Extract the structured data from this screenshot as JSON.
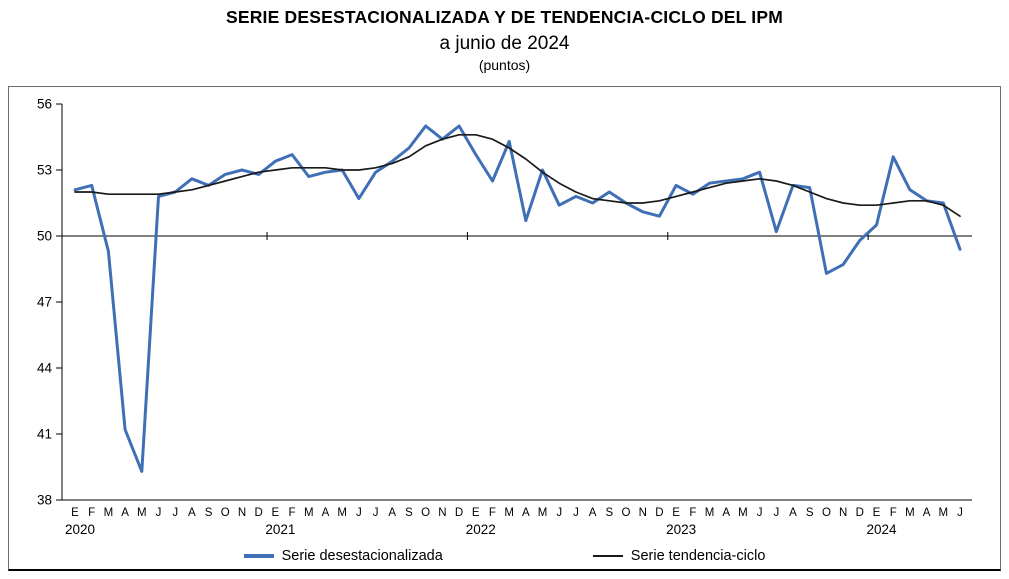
{
  "header": {
    "title": "SERIE DESESTACIONALIZADA Y DE TENDENCIA-CICLO DEL IPM",
    "subtitle": "a junio de 2024",
    "units": "(puntos)"
  },
  "legend": {
    "series1": "Serie desestacionalizada",
    "series2": "Serie tendencia-ciclo"
  },
  "chart_data": {
    "type": "line",
    "title": "SERIE DESESTACIONALIZADA Y DE TENDENCIA-CICLO DEL IPM",
    "subtitle": "a junio de 2024",
    "ylabel": "puntos",
    "ylim": [
      38,
      56
    ],
    "y_ticks": [
      38,
      41,
      44,
      47,
      50,
      53,
      56
    ],
    "reference_line": 50,
    "grid": false,
    "legend_position": "bottom",
    "x_month_labels": [
      "E",
      "F",
      "M",
      "A",
      "M",
      "J",
      "J",
      "A",
      "S",
      "O",
      "N",
      "D",
      "E",
      "F",
      "M",
      "A",
      "M",
      "J",
      "J",
      "A",
      "S",
      "O",
      "N",
      "D",
      "E",
      "F",
      "M",
      "A",
      "M",
      "J",
      "J",
      "A",
      "S",
      "O",
      "N",
      "D",
      "E",
      "F",
      "M",
      "A",
      "M",
      "J",
      "J",
      "A",
      "S",
      "O",
      "N",
      "D",
      "E",
      "F",
      "M",
      "A",
      "M",
      "J"
    ],
    "year_groups": [
      {
        "label": "2020",
        "start": 0,
        "months": 12
      },
      {
        "label": "2021",
        "start": 12,
        "months": 12
      },
      {
        "label": "2022",
        "start": 24,
        "months": 12
      },
      {
        "label": "2023",
        "start": 36,
        "months": 12
      },
      {
        "label": "2024",
        "start": 48,
        "months": 6
      }
    ],
    "series": [
      {
        "name": "Serie desestacionalizada",
        "color": "#3F6FB5",
        "values": [
          52.1,
          52.3,
          49.3,
          41.2,
          39.3,
          51.8,
          52.0,
          52.6,
          52.3,
          52.8,
          53.0,
          52.8,
          53.4,
          53.7,
          52.7,
          52.9,
          53.0,
          51.7,
          52.9,
          53.4,
          54.0,
          55.0,
          54.4,
          55.0,
          53.7,
          52.5,
          54.3,
          50.7,
          53.0,
          51.4,
          51.8,
          51.5,
          52.0,
          51.5,
          51.1,
          50.9,
          52.3,
          51.9,
          52.4,
          52.5,
          52.6,
          52.9,
          50.2,
          52.3,
          52.2,
          48.3,
          48.7,
          49.8,
          50.5,
          53.6,
          52.1,
          51.6,
          51.5,
          49.4
        ]
      },
      {
        "name": "Serie tendencia-ciclo",
        "color": "#1a1a1a",
        "values": [
          52.0,
          52.0,
          51.9,
          51.9,
          51.9,
          51.9,
          52.0,
          52.1,
          52.3,
          52.5,
          52.7,
          52.9,
          53.0,
          53.1,
          53.1,
          53.1,
          53.0,
          53.0,
          53.1,
          53.3,
          53.6,
          54.1,
          54.4,
          54.6,
          54.6,
          54.4,
          54.0,
          53.5,
          52.9,
          52.4,
          52.0,
          51.7,
          51.6,
          51.5,
          51.5,
          51.6,
          51.8,
          52.0,
          52.2,
          52.4,
          52.5,
          52.6,
          52.5,
          52.3,
          52.0,
          51.7,
          51.5,
          51.4,
          51.4,
          51.5,
          51.6,
          51.6,
          51.4,
          50.9
        ]
      }
    ]
  }
}
